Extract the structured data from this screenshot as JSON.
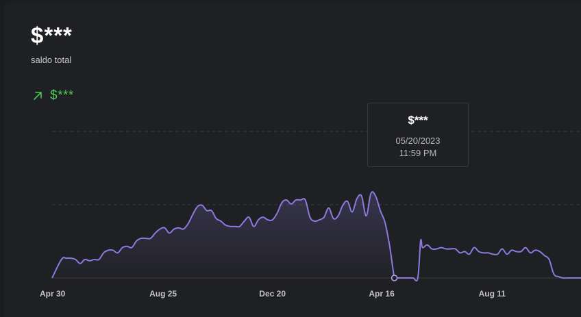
{
  "summary": {
    "balance": "$***",
    "balance_label": "saldo total",
    "change": "$***",
    "change_icon": "arrow-up-right-icon",
    "change_color": "#4fc95a"
  },
  "tooltip": {
    "value": "$***",
    "date": "05/20/2023",
    "time": "11:59 PM"
  },
  "chart_data": {
    "type": "area",
    "line_color": "#8b7be0",
    "grid": "dashed horizontal",
    "x_tick_labels": [
      "Apr 30",
      "Aug 25",
      "Dec 20",
      "Apr 16",
      "Aug 11"
    ],
    "x_tick_days": [
      0,
      117,
      234,
      351,
      468
    ],
    "x_range_days": [
      0,
      564
    ],
    "y_range": [
      0,
      1
    ],
    "x": [
      0,
      10,
      15,
      20,
      25,
      30,
      35,
      40,
      45,
      50,
      55,
      60,
      65,
      70,
      75,
      80,
      85,
      90,
      95,
      100,
      105,
      110,
      115,
      120,
      125,
      130,
      135,
      140,
      145,
      150,
      155,
      160,
      165,
      170,
      175,
      180,
      185,
      190,
      195,
      200,
      205,
      210,
      215,
      220,
      225,
      230,
      235,
      240,
      245,
      250,
      255,
      260,
      265,
      270,
      275,
      280,
      285,
      290,
      295,
      300,
      305,
      310,
      315,
      320,
      325,
      330,
      335,
      340,
      345,
      350,
      355,
      360,
      365,
      367,
      370,
      375,
      380,
      385,
      390,
      393,
      395,
      400,
      405,
      410,
      415,
      420,
      425,
      430,
      435,
      440,
      445,
      450,
      455,
      460,
      465,
      470,
      475,
      480,
      485,
      490,
      495,
      500,
      505,
      510,
      515,
      520,
      525,
      530,
      535,
      540,
      545,
      550,
      555,
      560,
      564
    ],
    "y": [
      0,
      0.14,
      0.15,
      0.15,
      0.14,
      0.11,
      0.14,
      0.13,
      0.14,
      0.14,
      0.19,
      0.21,
      0.21,
      0.19,
      0.23,
      0.24,
      0.23,
      0.28,
      0.3,
      0.3,
      0.3,
      0.34,
      0.37,
      0.38,
      0.34,
      0.37,
      0.38,
      0.37,
      0.41,
      0.48,
      0.54,
      0.55,
      0.51,
      0.51,
      0.45,
      0.43,
      0.4,
      0.39,
      0.39,
      0.39,
      0.43,
      0.46,
      0.39,
      0.44,
      0.46,
      0.44,
      0.44,
      0.49,
      0.57,
      0.59,
      0.56,
      0.59,
      0.59,
      0.59,
      0.46,
      0.43,
      0.44,
      0.46,
      0.53,
      0.45,
      0.47,
      0.55,
      0.58,
      0.5,
      0.6,
      0.62,
      0.47,
      0.64,
      0.62,
      0.51,
      0.42,
      0.24,
      0,
      0,
      0,
      0,
      0,
      0,
      0,
      0.28,
      0.23,
      0.25,
      0.22,
      0.22,
      0.23,
      0.22,
      0.22,
      0.22,
      0.19,
      0.2,
      0.18,
      0.23,
      0.2,
      0.19,
      0.19,
      0.18,
      0.18,
      0.22,
      0.18,
      0.21,
      0.2,
      0.2,
      0.23,
      0.19,
      0.21,
      0.2,
      0.17,
      0.14,
      0.03,
      0.01,
      0,
      0,
      0,
      0,
      0
    ],
    "highlight_index": 72
  }
}
